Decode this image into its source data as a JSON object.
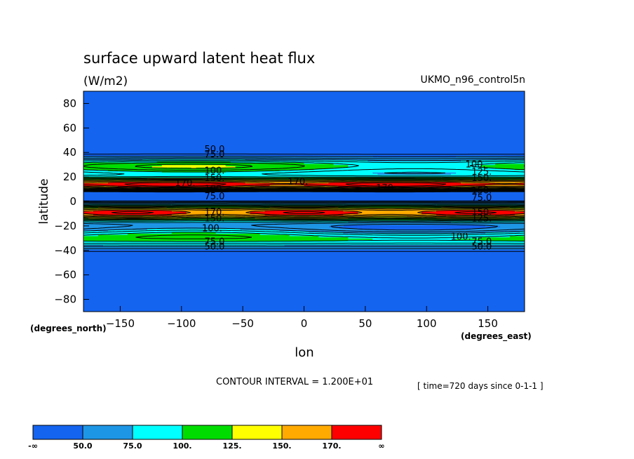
{
  "chart_data": {
    "type": "heatmap",
    "title": "surface upward latent heat flux",
    "units": "(W/m2)",
    "dataset": "UKMO_n96_control5n",
    "xlabel": "lon",
    "ylabel": "latitude",
    "x_unit_label": "(degrees_east)",
    "y_unit_label": "(degrees_north)",
    "xlim": [
      -180,
      180
    ],
    "ylim": [
      -90,
      90
    ],
    "xticks": [
      -150,
      -100,
      -50,
      0,
      50,
      100,
      150
    ],
    "yticks": [
      80,
      60,
      40,
      20,
      0,
      -20,
      -40,
      -60,
      -80
    ],
    "contour_interval_text": "CONTOUR INTERVAL = 1.200E+01",
    "time_text": "[ time=720 days since 0-1-1 ]",
    "legend": {
      "colors": [
        "#1464f0",
        "#1e96e6",
        "#00ffff",
        "#00dc00",
        "#ffff00",
        "#ffaa00",
        "#ff0000"
      ],
      "labels": [
        "-∞",
        "50.0",
        "75.0",
        "100.",
        "125.",
        "150.",
        "170.",
        "∞"
      ]
    },
    "contour_labels": [
      {
        "text": "50.0",
        "lon": -73,
        "lat": 42.5
      },
      {
        "text": "75.0",
        "lon": -73,
        "lat": 38.5
      },
      {
        "text": "100.",
        "lon": -73,
        "lat": 25
      },
      {
        "text": "150.",
        "lon": -73,
        "lat": 19
      },
      {
        "text": "170.",
        "lon": -97,
        "lat": 15
      },
      {
        "text": "170.",
        "lon": -5,
        "lat": 16
      },
      {
        "text": "170.",
        "lon": 67,
        "lat": 11
      },
      {
        "text": "100.",
        "lon": 140,
        "lat": 30
      },
      {
        "text": "125.",
        "lon": 145,
        "lat": 24
      },
      {
        "text": "150.",
        "lon": 145,
        "lat": 19
      },
      {
        "text": "150.",
        "lon": 145,
        "lat": 9
      },
      {
        "text": "100.",
        "lon": -73,
        "lat": 10
      },
      {
        "text": "75.0",
        "lon": -73,
        "lat": 4
      },
      {
        "text": "75.0",
        "lon": 145,
        "lat": 3
      },
      {
        "text": "170.",
        "lon": -73,
        "lat": -9
      },
      {
        "text": "150.",
        "lon": -73,
        "lat": -14
      },
      {
        "text": "150.",
        "lon": 145,
        "lat": -9
      },
      {
        "text": "125.",
        "lon": 145,
        "lat": -14
      },
      {
        "text": "100.",
        "lon": -75,
        "lat": -22
      },
      {
        "text": "100.",
        "lon": 128,
        "lat": -29
      },
      {
        "text": "75.0",
        "lon": -73,
        "lat": -33
      },
      {
        "text": "50.0",
        "lon": -73,
        "lat": -37
      },
      {
        "text": "75.0",
        "lon": 145,
        "lat": -33
      },
      {
        "text": "50.0",
        "lon": 145,
        "lat": -37
      }
    ]
  }
}
